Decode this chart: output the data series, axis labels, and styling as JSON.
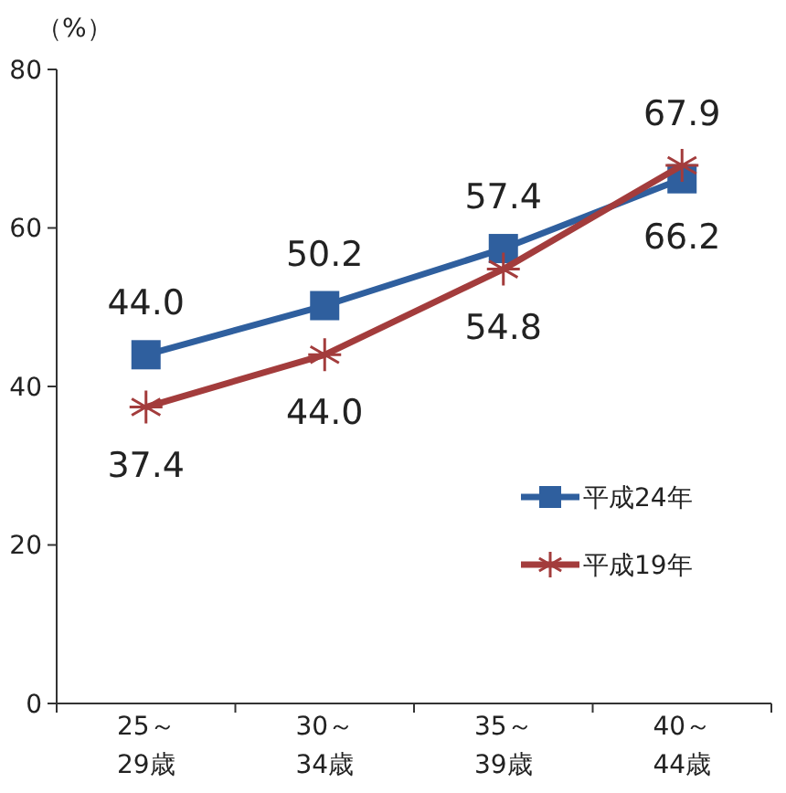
{
  "chart_data": {
    "type": "line",
    "ylabel": "（%）",
    "categories": [
      "25～\n29歳",
      "30～\n34歳",
      "35～\n39歳",
      "40～\n44歳"
    ],
    "series": [
      {
        "name": "平成24年",
        "color": "#2f5f9e",
        "marker": "square",
        "values": [
          44.0,
          50.2,
          57.4,
          66.2
        ],
        "value_labels": [
          "44.0",
          "50.2",
          "57.4",
          "66.2"
        ]
      },
      {
        "name": "平成19年",
        "color": "#a33c3c",
        "marker": "cross",
        "values": [
          37.4,
          44.0,
          54.8,
          67.9
        ],
        "value_labels": [
          "37.4",
          "44.0",
          "54.8",
          "67.9"
        ]
      }
    ],
    "ylim": [
      0,
      80
    ],
    "yticks": [
      0,
      20,
      40,
      60,
      80
    ],
    "legend": "bottom right",
    "grid": false,
    "line_style": "solid"
  }
}
